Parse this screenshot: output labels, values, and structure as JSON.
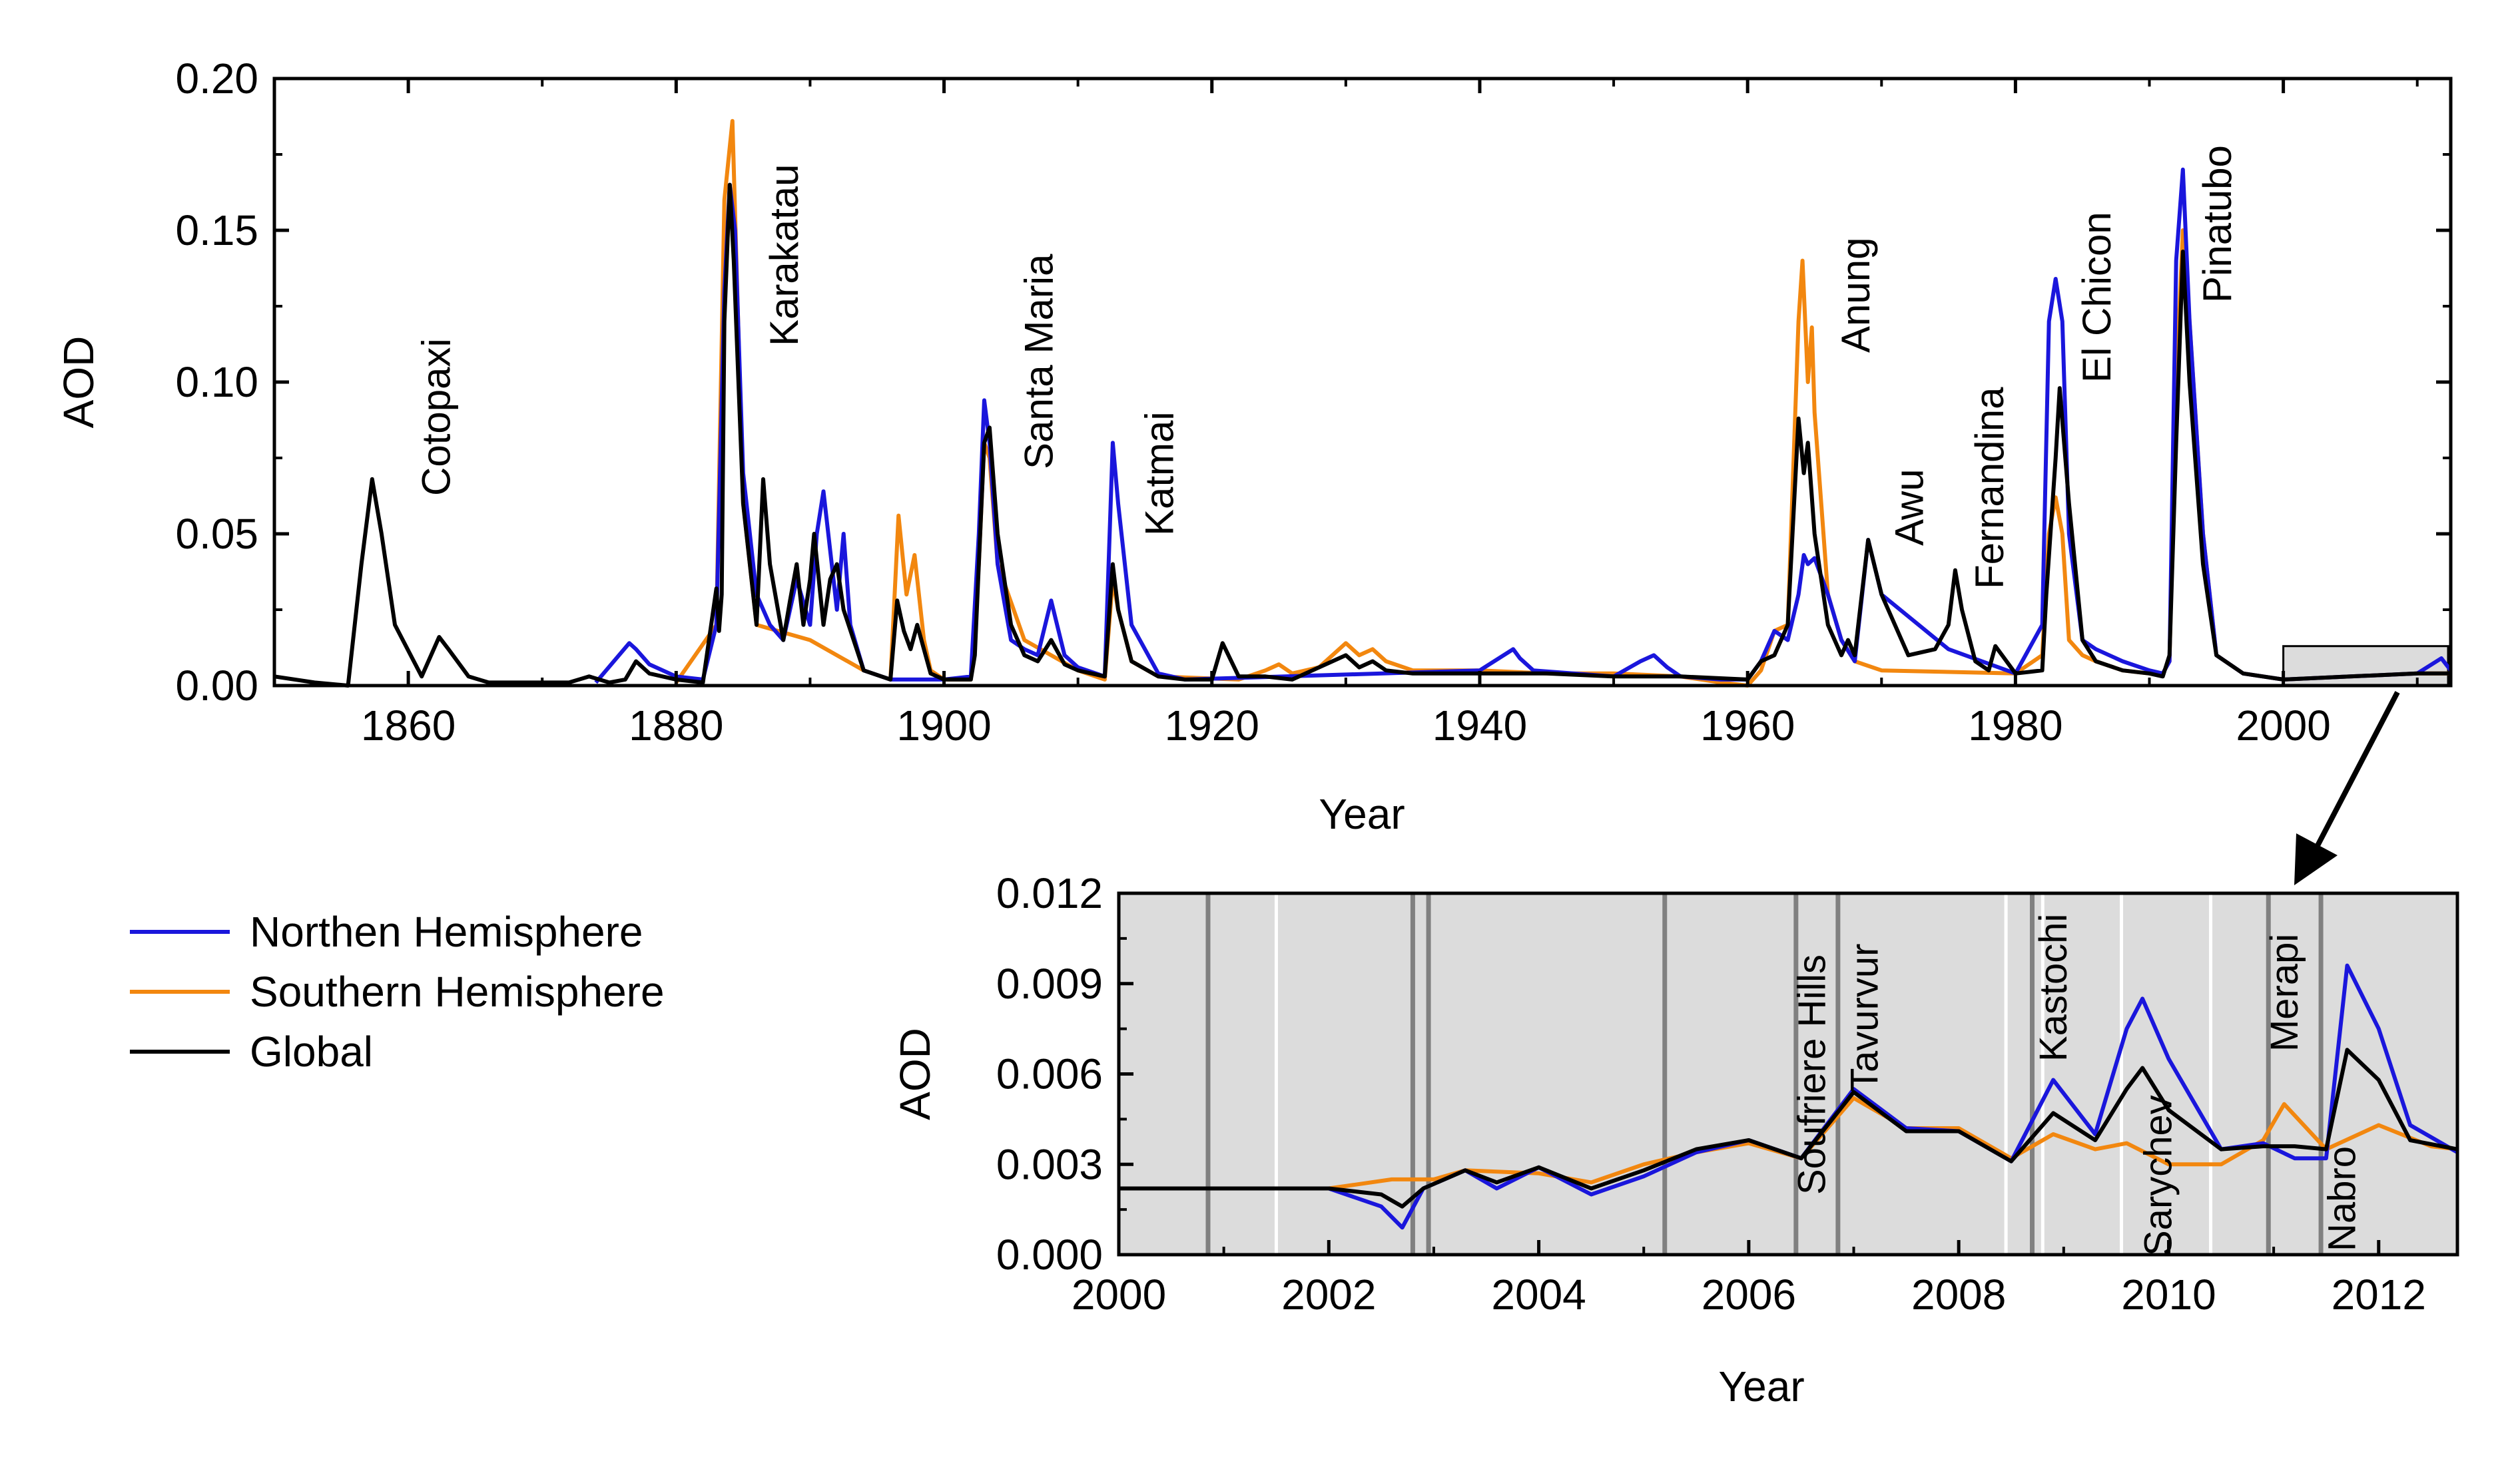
{
  "colors": {
    "north": "#1a16dc",
    "south": "#f2870f",
    "global": "#000000",
    "inset_bg": "#dcdcdc",
    "eruption_line": "#808080",
    "white_line": "#ffffff"
  },
  "legend": [
    {
      "key": "north",
      "label": "Northen Hemisphere"
    },
    {
      "key": "south",
      "label": "Southern Hemisphere"
    },
    {
      "key": "global",
      "label": "Global"
    }
  ],
  "chart_data": [
    {
      "type": "line",
      "xlabel": "Year",
      "ylabel": "AOD",
      "xlim": [
        1850,
        2012.5
      ],
      "ylim": [
        0,
        0.2
      ],
      "x_ticks": [
        1860,
        1880,
        1900,
        1920,
        1940,
        1960,
        1980,
        2000
      ],
      "y_ticks": [
        "0.00",
        "0.05",
        "0.10",
        "0.15",
        "0.20"
      ],
      "annotations": [
        {
          "label": "Cotopaxi",
          "x": 1862
        },
        {
          "label": "Karakatau",
          "x": 1888
        },
        {
          "label": "Santa Maria",
          "x": 1907
        },
        {
          "label": "Katmai",
          "x": 1916
        },
        {
          "label": "Anung",
          "x": 1968
        },
        {
          "label": "Awu",
          "x": 1972
        },
        {
          "label": "Fernandina",
          "x": 1978
        },
        {
          "label": "El Chicon",
          "x": 1986
        },
        {
          "label": "Pinatubo",
          "x": 1995
        }
      ],
      "zoom_box": {
        "x": [
          2000,
          2012.5
        ],
        "y": [
          0,
          0.013
        ]
      },
      "series": [
        {
          "key": "global",
          "x": [
            1850,
            1853,
            1855.5,
            1856.5,
            1857.3,
            1858,
            1859,
            1861,
            1862.3,
            1863,
            1864.5,
            1866,
            1868,
            1872,
            1873.5,
            1875,
            1876.2,
            1877,
            1878,
            1880,
            1882,
            1883,
            1883.2,
            1883.4,
            1883.6,
            1884,
            1884.3,
            1885,
            1886,
            1886.5,
            1887,
            1888,
            1888.5,
            1889,
            1889.5,
            1890,
            1890.3,
            1891,
            1891.5,
            1892,
            1892.5,
            1894,
            1896,
            1896.5,
            1897,
            1897.5,
            1898,
            1899,
            1900,
            1902,
            1902.3,
            1902.6,
            1903,
            1903.4,
            1904,
            1905,
            1906,
            1907,
            1908,
            1909,
            1910,
            1912,
            1912.6,
            1913,
            1914,
            1916,
            1918,
            1920,
            1920.8,
            1922,
            1924,
            1926,
            1928,
            1929,
            1930,
            1931,
            1932,
            1933,
            1935,
            1940,
            1945,
            1950,
            1955,
            1960,
            1961,
            1962,
            1963,
            1963.8,
            1964.2,
            1964.5,
            1965,
            1966,
            1967,
            1967.5,
            1968,
            1969,
            1970,
            1972,
            1974,
            1975,
            1975.5,
            1976,
            1977,
            1978,
            1978.5,
            1979,
            1980,
            1982,
            1982.3,
            1983,
            1983.3,
            1984,
            1985,
            1986,
            1988,
            1990,
            1991,
            1991.5,
            1992,
            1992.5,
            1993,
            1994,
            1995,
            1997,
            2000,
            2005,
            2010,
            2012.5
          ],
          "y": [
            0.003,
            0.001,
            0,
            0.04,
            0.068,
            0.05,
            0.02,
            0.003,
            0.016,
            0.012,
            0.003,
            0.001,
            0.001,
            0.001,
            0.003,
            0.001,
            0.002,
            0.008,
            0.004,
            0.002,
            0.001,
            0.032,
            0.018,
            0.03,
            0.12,
            0.165,
            0.14,
            0.06,
            0.02,
            0.068,
            0.04,
            0.015,
            0.028,
            0.04,
            0.02,
            0.035,
            0.05,
            0.02,
            0.035,
            0.04,
            0.025,
            0.005,
            0.002,
            0.028,
            0.018,
            0.012,
            0.02,
            0.004,
            0.002,
            0.002,
            0.01,
            0.04,
            0.08,
            0.085,
            0.05,
            0.02,
            0.01,
            0.008,
            0.015,
            0.007,
            0.005,
            0.003,
            0.04,
            0.025,
            0.008,
            0.003,
            0.002,
            0.002,
            0.014,
            0.003,
            0.003,
            0.002,
            0.006,
            0.008,
            0.01,
            0.006,
            0.008,
            0.005,
            0.004,
            0.004,
            0.004,
            0.003,
            0.003,
            0.002,
            0.008,
            0.01,
            0.02,
            0.088,
            0.07,
            0.08,
            0.05,
            0.02,
            0.01,
            0.015,
            0.01,
            0.048,
            0.03,
            0.01,
            0.012,
            0.02,
            0.038,
            0.025,
            0.008,
            0.005,
            0.013,
            0.01,
            0.004,
            0.005,
            0.03,
            0.075,
            0.098,
            0.06,
            0.015,
            0.008,
            0.005,
            0.004,
            0.003,
            0.01,
            0.08,
            0.143,
            0.1,
            0.04,
            0.01,
            0.004,
            0.002,
            0.003,
            0.004,
            0.004
          ]
        },
        {
          "key": "north",
          "x": [
            1874,
            1876.5,
            1877,
            1878,
            1880,
            1882,
            1883,
            1883.6,
            1884,
            1884.4,
            1885,
            1886,
            1887,
            1888,
            1889,
            1890,
            1890.5,
            1891,
            1892,
            1892.5,
            1893,
            1894,
            1896,
            1900,
            1902,
            1902.6,
            1903,
            1903.4,
            1904,
            1905,
            1906,
            1907,
            1908,
            1909,
            1910,
            1912,
            1912.6,
            1913,
            1914,
            1916,
            1918,
            1940,
            1942.5,
            1943,
            1944,
            1950,
            1952,
            1953,
            1954,
            1955,
            1958,
            1960,
            1961,
            1962,
            1963,
            1963.8,
            1964.2,
            1964.5,
            1965,
            1966,
            1967,
            1968,
            1969,
            1970,
            1975,
            1980,
            1982,
            1982.5,
            1983,
            1983.5,
            1984,
            1985,
            1986,
            1988,
            1990,
            1991,
            1991.5,
            1992,
            1992.5,
            1993,
            1994,
            1995,
            1997,
            2000,
            2005,
            2010,
            2011.8,
            2012.5
          ],
          "y": [
            0.001,
            0.014,
            0.012,
            0.007,
            0.003,
            0.002,
            0.02,
            0.13,
            0.165,
            0.15,
            0.07,
            0.03,
            0.02,
            0.015,
            0.035,
            0.02,
            0.05,
            0.064,
            0.025,
            0.05,
            0.02,
            0.005,
            0.002,
            0.002,
            0.003,
            0.05,
            0.094,
            0.08,
            0.04,
            0.015,
            0.012,
            0.01,
            0.028,
            0.01,
            0.006,
            0.003,
            0.08,
            0.06,
            0.02,
            0.004,
            0.002,
            0.005,
            0.012,
            0.009,
            0.005,
            0.003,
            0.008,
            0.01,
            0.006,
            0.003,
            0.002,
            0.002,
            0.008,
            0.018,
            0.015,
            0.03,
            0.043,
            0.04,
            0.042,
            0.03,
            0.015,
            0.008,
            0.048,
            0.03,
            0.012,
            0.004,
            0.02,
            0.12,
            0.134,
            0.12,
            0.05,
            0.015,
            0.012,
            0.008,
            0.005,
            0.004,
            0.008,
            0.14,
            0.17,
            0.12,
            0.05,
            0.01,
            0.004,
            0.002,
            0.003,
            0.004,
            0.009,
            0.005
          ]
        },
        {
          "key": "south",
          "x": [
            1880,
            1883,
            1883.6,
            1884.2,
            1884.5,
            1885,
            1886,
            1890,
            1894,
            1896,
            1896.6,
            1897.2,
            1897.8,
            1898.5,
            1899,
            1900,
            1902,
            1902.6,
            1903,
            1903.4,
            1904,
            1906,
            1910,
            1912,
            1912.6,
            1913,
            1914,
            1916,
            1922,
            1924,
            1925,
            1926,
            1928,
            1929,
            1930,
            1931,
            1932,
            1933,
            1935,
            1940,
            1945,
            1950,
            1955,
            1958,
            1960,
            1961,
            1962,
            1963,
            1963.8,
            1964.1,
            1964.5,
            1964.8,
            1965,
            1966,
            1967,
            1968,
            1970,
            1980,
            1982,
            1982.5,
            1983,
            1983.5,
            1984,
            1985,
            1986,
            1988,
            1990,
            1991,
            1991.5,
            1992,
            1992.5,
            1993,
            1994,
            1995,
            1997,
            2000,
            2005,
            2010,
            2012.5
          ],
          "y": [
            0.001,
            0.02,
            0.16,
            0.186,
            0.14,
            0.06,
            0.02,
            0.015,
            0.005,
            0.002,
            0.056,
            0.03,
            0.043,
            0.015,
            0.005,
            0.002,
            0.002,
            0.04,
            0.08,
            0.075,
            0.04,
            0.015,
            0.005,
            0.002,
            0.035,
            0.025,
            0.008,
            0.003,
            0.002,
            0.005,
            0.007,
            0.004,
            0.006,
            0.01,
            0.014,
            0.01,
            0.012,
            0.008,
            0.005,
            0.005,
            0.004,
            0.004,
            0.003,
            0.001,
            0,
            0.005,
            0.018,
            0.02,
            0.12,
            0.14,
            0.1,
            0.118,
            0.09,
            0.03,
            0.015,
            0.008,
            0.005,
            0.004,
            0.01,
            0.05,
            0.062,
            0.05,
            0.015,
            0.01,
            0.008,
            0.005,
            0.004,
            0.004,
            0.008,
            0.1,
            0.15,
            0.12,
            0.05,
            0.01,
            0.004,
            0.002,
            0.003,
            0.004,
            0.004
          ]
        }
      ]
    },
    {
      "type": "line",
      "xlabel": "Year",
      "ylabel": "AOD",
      "xlim": [
        2000,
        2012.75
      ],
      "ylim": [
        0,
        0.012
      ],
      "x_ticks": [
        2000,
        2002,
        2004,
        2006,
        2008,
        2010,
        2012
      ],
      "y_ticks": [
        "0.000",
        "0.003",
        "0.006",
        "0.009",
        "0.012"
      ],
      "eruption_lines_gray": [
        2000.85,
        2002.8,
        2002.95,
        2005.2,
        2006.45,
        2006.85,
        2008.7,
        2010.95,
        2011.45
      ],
      "eruption_lines_white": [
        2001.5,
        2008.45,
        2008.8,
        2009.55,
        2010.4
      ],
      "annotations": [
        {
          "label": "Soufriere Hills",
          "x": 2006.6,
          "pos": "bottom"
        },
        {
          "label": "Tavurvur",
          "x": 2007.1,
          "pos": "top"
        },
        {
          "label": "Kastochi",
          "x": 2008.9,
          "pos": "top"
        },
        {
          "label": "Sarychev",
          "x": 2009.9,
          "pos": "bottom"
        },
        {
          "label": "Merapi",
          "x": 2011.1,
          "pos": "top"
        },
        {
          "label": "Nabro",
          "x": 2011.65,
          "pos": "bottom"
        }
      ],
      "series": [
        {
          "key": "south",
          "x": [
            2000,
            2002,
            2002.6,
            2003,
            2003.3,
            2004,
            2004.5,
            2005,
            2005.5,
            2006,
            2006.5,
            2007,
            2007.5,
            2008,
            2008.5,
            2008.9,
            2009.3,
            2009.6,
            2010,
            2010.5,
            2010.9,
            2011.1,
            2011.5,
            2012,
            2012.5,
            2012.75
          ],
          "y": [
            0.0022,
            0.0022,
            0.0025,
            0.0025,
            0.0028,
            0.0027,
            0.0024,
            0.003,
            0.0034,
            0.0037,
            0.0032,
            0.0052,
            0.0042,
            0.0042,
            0.0032,
            0.004,
            0.0035,
            0.0037,
            0.003,
            0.003,
            0.0038,
            0.005,
            0.0035,
            0.0043,
            0.0036,
            0.0035
          ]
        },
        {
          "key": "north",
          "x": [
            2000,
            2002,
            2002.5,
            2002.7,
            2002.9,
            2003.3,
            2003.6,
            2004,
            2004.5,
            2005,
            2005.5,
            2006,
            2006.5,
            2007,
            2007.5,
            2008,
            2008.5,
            2008.9,
            2009.3,
            2009.6,
            2009.75,
            2010,
            2010.5,
            2010.9,
            2011.2,
            2011.5,
            2011.7,
            2012,
            2012.3,
            2012.75
          ],
          "y": [
            0.0022,
            0.0022,
            0.0016,
            0.0009,
            0.0022,
            0.0028,
            0.0022,
            0.0029,
            0.002,
            0.0026,
            0.0034,
            0.0038,
            0.0032,
            0.0055,
            0.0042,
            0.0041,
            0.0031,
            0.0058,
            0.004,
            0.0075,
            0.0085,
            0.0065,
            0.0035,
            0.0037,
            0.0032,
            0.0032,
            0.0096,
            0.0075,
            0.0043,
            0.0034
          ]
        },
        {
          "key": "global",
          "x": [
            2000,
            2002,
            2002.5,
            2002.7,
            2002.9,
            2003.3,
            2003.6,
            2004,
            2004.5,
            2005,
            2005.5,
            2006,
            2006.5,
            2007,
            2007.5,
            2008,
            2008.5,
            2008.9,
            2009.3,
            2009.6,
            2009.75,
            2010,
            2010.5,
            2010.9,
            2011.2,
            2011.5,
            2011.7,
            2012,
            2012.3,
            2012.75
          ],
          "y": [
            0.0022,
            0.0022,
            0.002,
            0.0016,
            0.0022,
            0.0028,
            0.0024,
            0.0029,
            0.0022,
            0.0028,
            0.0035,
            0.0038,
            0.0032,
            0.0054,
            0.0041,
            0.0041,
            0.0031,
            0.0047,
            0.0038,
            0.0055,
            0.0062,
            0.0048,
            0.0035,
            0.0036,
            0.0036,
            0.0035,
            0.0068,
            0.0058,
            0.0038,
            0.0035
          ]
        }
      ]
    }
  ]
}
